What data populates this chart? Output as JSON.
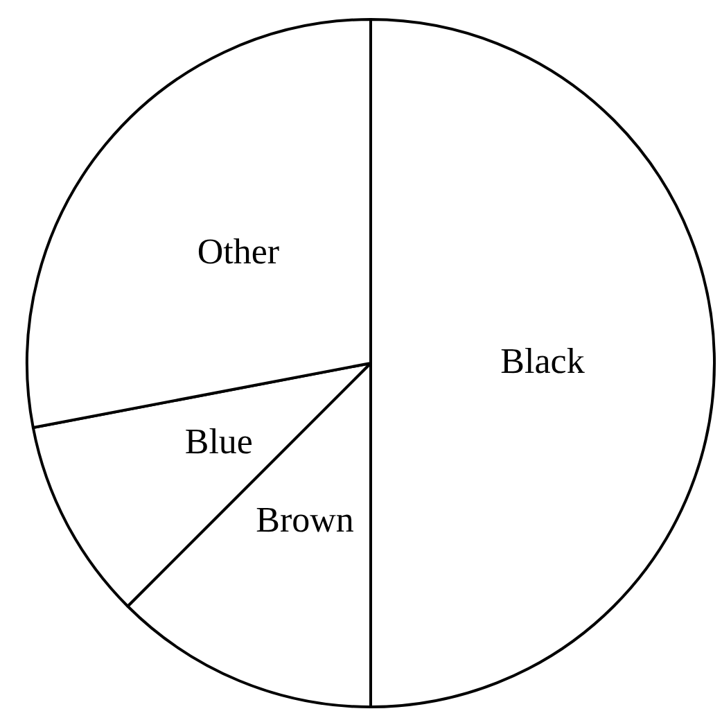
{
  "chart_data": {
    "type": "pie",
    "categories": [
      "Black",
      "Brown",
      "Blue",
      "Other"
    ],
    "values": [
      50,
      12.5,
      9.5,
      28
    ],
    "colors": [
      "#ffffff",
      "#ffffff",
      "#ffffff",
      "#ffffff"
    ]
  }
}
